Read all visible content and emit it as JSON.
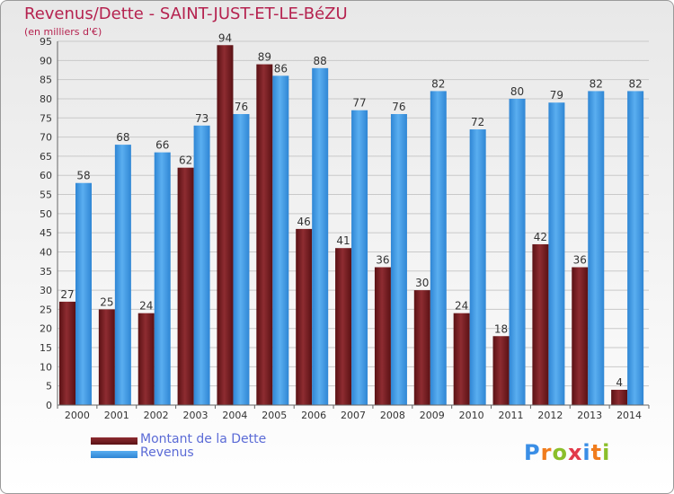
{
  "header": {
    "title": "Revenus/Dette - SAINT-JUST-ET-LE-BéZU",
    "subtitle": "(en milliers d'€)"
  },
  "logo": {
    "text": "Proxiti",
    "letters": [
      "P",
      "r",
      "o",
      "x",
      "i",
      "t",
      "i"
    ],
    "colors": [
      "#3a8ee6",
      "#f07c1d",
      "#8bbf2a",
      "#e23a4a",
      "#3a8ee6",
      "#f07c1d",
      "#8bbf2a"
    ]
  },
  "legend": {
    "items": [
      {
        "label": "Montant de la Dette",
        "color": "#6b1a1d"
      },
      {
        "label": "Revenus",
        "color": "#3d98e3"
      }
    ]
  },
  "chart_data": {
    "type": "bar",
    "title": "Revenus/Dette - SAINT-JUST-ET-LE-BéZU",
    "ylabel": "(en milliers d'€)",
    "categories": [
      "2000",
      "2001",
      "2002",
      "2003",
      "2004",
      "2005",
      "2006",
      "2007",
      "2008",
      "2009",
      "2010",
      "2011",
      "2012",
      "2013",
      "2014"
    ],
    "series": [
      {
        "name": "Montant de la Dette",
        "color": "#6b1a1d",
        "values": [
          27,
          25,
          24,
          62,
          94,
          89,
          46,
          41,
          36,
          30,
          24,
          18,
          42,
          36,
          4
        ]
      },
      {
        "name": "Revenus",
        "color": "#3d98e3",
        "values": [
          58,
          68,
          66,
          73,
          76,
          86,
          88,
          77,
          76,
          82,
          72,
          80,
          79,
          82,
          82
        ]
      }
    ],
    "ylim": [
      0,
      95
    ],
    "ytick_step": 5,
    "grid": true,
    "legend": "bottom-left"
  }
}
